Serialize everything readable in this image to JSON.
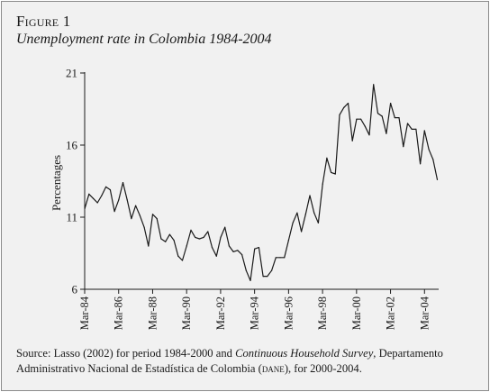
{
  "figure": {
    "label": "Figure 1",
    "title": "Unemployment rate in Colombia 1984-2004"
  },
  "source": {
    "prefix": "Source: Lasso (2002) for period 1984-2000 and ",
    "italic": "Continuous Household Survey",
    "middle": ", Departamento Administrativo Nacional de Estadística de Colombia (",
    "abbrev": "dane",
    "suffix": "), for 2000-2004."
  },
  "chart_data": {
    "type": "line",
    "title": "Unemployment rate in Colombia 1984-2004",
    "xlabel": "",
    "ylabel": "Percentages",
    "ylim": [
      6,
      21
    ],
    "yticks": [
      6,
      11,
      16,
      21
    ],
    "xlim": [
      1984.167,
      2005.0
    ],
    "xticks": [
      {
        "x": 1984.167,
        "label": "Mar-84"
      },
      {
        "x": 1986.167,
        "label": "Mar-86"
      },
      {
        "x": 1988.167,
        "label": "Mar-88"
      },
      {
        "x": 1990.167,
        "label": "Mar-90"
      },
      {
        "x": 1992.167,
        "label": "Mar-92"
      },
      {
        "x": 1994.167,
        "label": "Mar-94"
      },
      {
        "x": 1996.167,
        "label": "Mar-96"
      },
      {
        "x": 1998.167,
        "label": "Mar-98"
      },
      {
        "x": 2000.167,
        "label": "Mar-00"
      },
      {
        "x": 2002.167,
        "label": "Mar-02"
      },
      {
        "x": 2004.167,
        "label": "Mar-04"
      }
    ],
    "grid": false,
    "series": [
      {
        "color": "#1a1a1a",
        "points": [
          [
            1984.17,
            11.6
          ],
          [
            1984.42,
            12.6
          ],
          [
            1984.67,
            12.3
          ],
          [
            1984.92,
            12.0
          ],
          [
            1985.17,
            12.5
          ],
          [
            1985.42,
            13.1
          ],
          [
            1985.67,
            12.9
          ],
          [
            1985.92,
            11.4
          ],
          [
            1986.17,
            12.2
          ],
          [
            1986.42,
            13.4
          ],
          [
            1986.67,
            12.2
          ],
          [
            1986.92,
            10.9
          ],
          [
            1987.17,
            11.8
          ],
          [
            1987.42,
            11.1
          ],
          [
            1987.67,
            10.3
          ],
          [
            1987.92,
            9.0
          ],
          [
            1988.17,
            11.2
          ],
          [
            1988.42,
            10.9
          ],
          [
            1988.67,
            9.5
          ],
          [
            1988.92,
            9.3
          ],
          [
            1989.17,
            9.8
          ],
          [
            1989.42,
            9.4
          ],
          [
            1989.67,
            8.3
          ],
          [
            1989.92,
            8.0
          ],
          [
            1990.17,
            9.0
          ],
          [
            1990.42,
            10.1
          ],
          [
            1990.67,
            9.6
          ],
          [
            1990.92,
            9.5
          ],
          [
            1991.17,
            9.6
          ],
          [
            1991.42,
            10.0
          ],
          [
            1991.67,
            8.9
          ],
          [
            1991.92,
            8.3
          ],
          [
            1992.17,
            9.6
          ],
          [
            1992.42,
            10.3
          ],
          [
            1992.67,
            9.0
          ],
          [
            1992.92,
            8.6
          ],
          [
            1993.17,
            8.7
          ],
          [
            1993.42,
            8.4
          ],
          [
            1993.67,
            7.3
          ],
          [
            1993.92,
            6.6
          ],
          [
            1994.17,
            8.8
          ],
          [
            1994.42,
            8.9
          ],
          [
            1994.67,
            6.9
          ],
          [
            1994.92,
            6.9
          ],
          [
            1995.17,
            7.3
          ],
          [
            1995.42,
            8.2
          ],
          [
            1995.67,
            8.2
          ],
          [
            1995.92,
            8.2
          ],
          [
            1996.17,
            9.4
          ],
          [
            1996.42,
            10.6
          ],
          [
            1996.67,
            11.3
          ],
          [
            1996.92,
            10.0
          ],
          [
            1997.17,
            11.2
          ],
          [
            1997.42,
            12.5
          ],
          [
            1997.67,
            11.3
          ],
          [
            1997.92,
            10.6
          ],
          [
            1998.17,
            13.3
          ],
          [
            1998.42,
            15.1
          ],
          [
            1998.67,
            14.1
          ],
          [
            1998.92,
            14.0
          ],
          [
            1999.17,
            18.1
          ],
          [
            1999.42,
            18.6
          ],
          [
            1999.67,
            18.9
          ],
          [
            1999.92,
            16.3
          ],
          [
            2000.17,
            17.8
          ],
          [
            2000.42,
            17.8
          ],
          [
            2000.67,
            17.3
          ],
          [
            2000.92,
            16.7
          ],
          [
            2001.17,
            20.2
          ],
          [
            2001.42,
            18.2
          ],
          [
            2001.67,
            18.0
          ],
          [
            2001.92,
            16.8
          ],
          [
            2002.17,
            18.9
          ],
          [
            2002.42,
            17.9
          ],
          [
            2002.67,
            17.9
          ],
          [
            2002.92,
            15.9
          ],
          [
            2003.17,
            17.5
          ],
          [
            2003.42,
            17.1
          ],
          [
            2003.67,
            17.1
          ],
          [
            2003.92,
            14.7
          ],
          [
            2004.17,
            17.0
          ],
          [
            2004.42,
            15.7
          ],
          [
            2004.67,
            15.0
          ],
          [
            2004.92,
            13.6
          ]
        ]
      }
    ]
  }
}
